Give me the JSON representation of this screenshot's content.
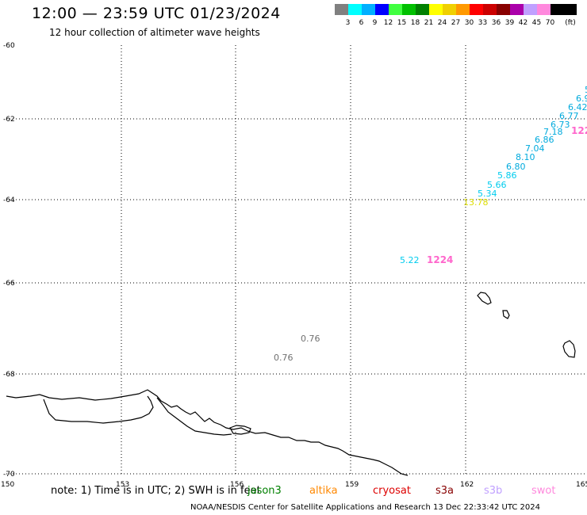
{
  "header": {
    "title": "12:00 — 23:59 UTC 01/23/2024",
    "subtitle": "12 hour collection of altimeter wave heights"
  },
  "legend": {
    "unit": "(ft)",
    "items": [
      {
        "color": "#808080",
        "label": "3"
      },
      {
        "color": "#00ffff",
        "label": "6"
      },
      {
        "color": "#00b0ff",
        "label": "9"
      },
      {
        "color": "#0000ff",
        "label": "12"
      },
      {
        "color": "#40ff40",
        "label": "15"
      },
      {
        "color": "#00c000",
        "label": "18"
      },
      {
        "color": "#008000",
        "label": "21"
      },
      {
        "color": "#ffff00",
        "label": "24"
      },
      {
        "color": "#f0d000",
        "label": "27"
      },
      {
        "color": "#ff9900",
        "label": "30"
      },
      {
        "color": "#ff0000",
        "label": "33"
      },
      {
        "color": "#cc0000",
        "label": "36"
      },
      {
        "color": "#880000",
        "label": "39"
      },
      {
        "color": "#aa00aa",
        "label": "42"
      },
      {
        "color": "#c0a0ff",
        "label": "45"
      },
      {
        "color": "#ff88dd",
        "label": "70"
      },
      {
        "color": "#000000",
        "label": ""
      }
    ]
  },
  "map": {
    "lon_ticks": [
      "150",
      "153",
      "156",
      "159",
      "162",
      "165"
    ],
    "lat_ticks": [
      "-60",
      "-62",
      "-64",
      "-66",
      "-68",
      "-70"
    ],
    "observations": [
      {
        "value": "5.",
        "color": "#00aadd"
      },
      {
        "value": "6.9",
        "color": "#00aadd"
      },
      {
        "value": "6.42",
        "color": "#00aadd"
      },
      {
        "value": "6.77",
        "color": "#00aadd"
      },
      {
        "value": "6.73",
        "color": "#00aadd"
      },
      {
        "value": "7.18",
        "color": "#00aadd"
      },
      {
        "value": "6.86",
        "color": "#00aadd"
      },
      {
        "value": "7.04",
        "color": "#00aadd"
      },
      {
        "value": "8.10",
        "color": "#00aadd"
      },
      {
        "value": "6.80",
        "color": "#00aadd"
      },
      {
        "value": "5.86",
        "color": "#00ccee"
      },
      {
        "value": "5.66",
        "color": "#00ccee"
      },
      {
        "value": "5.34",
        "color": "#00ccee"
      },
      {
        "value": "13.78",
        "color": "#dddd00"
      },
      {
        "value": "5.22",
        "color": "#00ccee"
      },
      {
        "value": "0.76",
        "color": "#707070"
      },
      {
        "value": "0.76",
        "color": "#707070"
      }
    ],
    "pass_times": [
      {
        "value": "122",
        "color": "#ff66cc"
      },
      {
        "value": "1224",
        "color": "#ff66cc"
      }
    ]
  },
  "footer": {
    "note": "note:  1) Time is in UTC;  2) SWH is in feet",
    "satellites": [
      {
        "name": "jason3",
        "color": "#008000"
      },
      {
        "name": "altika",
        "color": "#ff8800"
      },
      {
        "name": "cryosat",
        "color": "#dd0000"
      },
      {
        "name": "s3a",
        "color": "#880000"
      },
      {
        "name": "s3b",
        "color": "#c0a0ff"
      },
      {
        "name": "swot",
        "color": "#ff88dd"
      }
    ],
    "credit": "NOAA/NESDIS Center for Satellite Applications and Research     13 Dec 22:33:42 UTC 2024"
  }
}
